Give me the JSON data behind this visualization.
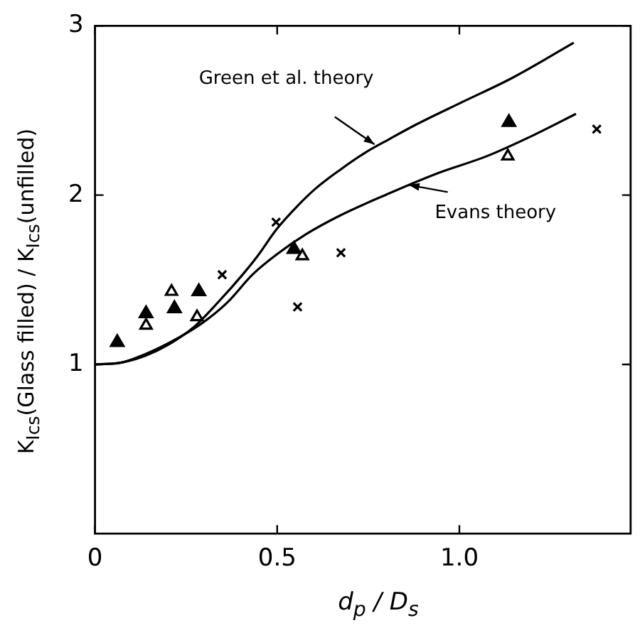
{
  "chart_data": {
    "type": "scatter",
    "xlabel": "d$_{p}$ / D$_{s}$",
    "ylabel": "K$_{Ics}$(Glass filled) / K$_{Ics}$(unfilled)",
    "xlim": [
      0,
      1.47
    ],
    "ylim": [
      0,
      3
    ],
    "xticks": [
      0,
      0.5,
      {
        "value": 1,
        "label": "1.0"
      }
    ],
    "yticks": [
      1,
      2,
      3
    ],
    "grid": false,
    "legend": false,
    "series": [
      {
        "type": "line",
        "color": "#000000",
        "marker": "none",
        "x": [
          0,
          0.07,
          0.137,
          0.204,
          0.271,
          0.339,
          0.405,
          0.446,
          0.499,
          0.553,
          0.606,
          0.673,
          0.741,
          0.807,
          0.875,
          1.008,
          1.143,
          1.314
        ],
        "values": [
          1,
          1.01,
          1.05,
          1.12,
          1.22,
          1.37,
          1.53,
          1.64,
          1.8,
          1.93,
          2.04,
          2.15,
          2.25,
          2.33,
          2.41,
          2.55,
          2.69,
          2.9
        ]
      },
      {
        "type": "line",
        "color": "#000000",
        "marker": "none",
        "x": [
          0,
          0.07,
          0.137,
          0.231,
          0.298,
          0.365,
          0.432,
          0.499,
          0.58,
          0.673,
          0.807,
          0.941,
          1.075,
          1.209,
          1.32
        ],
        "values": [
          1,
          1.01,
          1.06,
          1.16,
          1.25,
          1.37,
          1.53,
          1.65,
          1.77,
          1.88,
          2.01,
          2.13,
          2.23,
          2.36,
          2.48
        ]
      },
      {
        "color": "#000000",
        "marker": "triangle",
        "x": [
          0.061,
          0.14,
          0.218,
          0.285,
          0.546,
          1.136
        ],
        "values": [
          1.13,
          1.3,
          1.33,
          1.43,
          1.68,
          2.43
        ]
      },
      {
        "color": "#000000",
        "marker": "triangle-open",
        "x": [
          0.14,
          0.21,
          0.28,
          0.569,
          1.133
        ],
        "values": [
          1.23,
          1.43,
          1.28,
          1.64,
          2.23
        ]
      },
      {
        "color": "#000000",
        "marker": "cross",
        "x": [
          0.349,
          0.497,
          0.556,
          0.675,
          1.377
        ],
        "values": [
          1.53,
          1.84,
          1.34,
          1.66,
          2.39
        ]
      }
    ],
    "annotations": [
      {
        "text": "Green et al. theory",
        "x": 0.767,
        "y": 2.3
      },
      {
        "text": "Evans theory",
        "x": 0.861,
        "y": 2.06
      }
    ]
  }
}
